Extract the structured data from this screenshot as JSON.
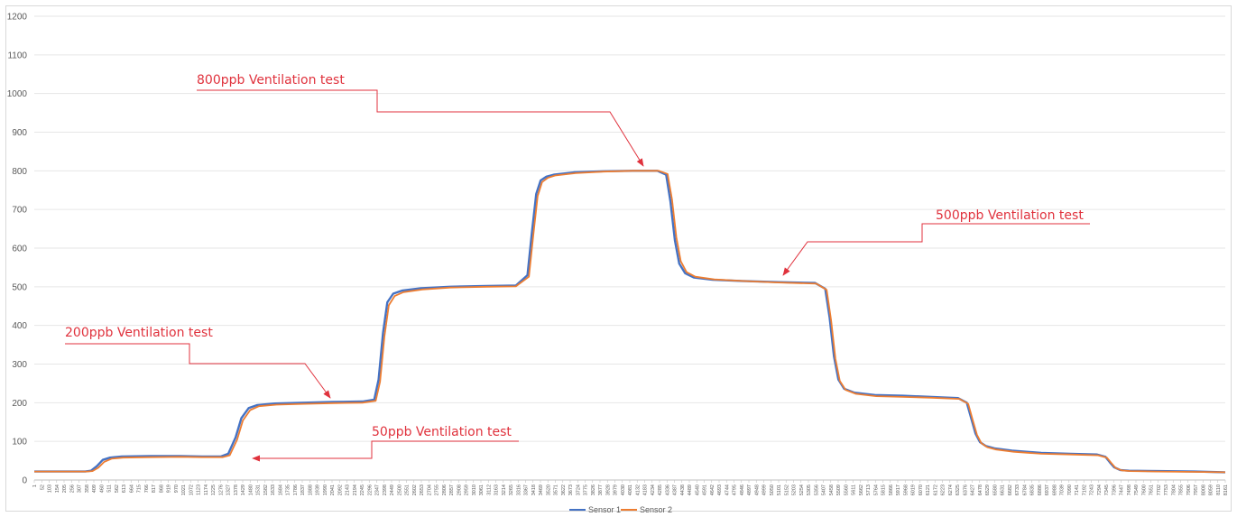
{
  "chart_data": {
    "type": "line",
    "title": "",
    "xlabel": "",
    "ylabel": "",
    "ylim": [
      0,
      1200
    ],
    "yticks": [
      0,
      100,
      200,
      300,
      400,
      500,
      600,
      700,
      800,
      900,
      1000,
      1100,
      1200
    ],
    "xlim": [
      1,
      8161
    ],
    "xticks": [
      1,
      52,
      103,
      154,
      205,
      256,
      307,
      358,
      409,
      460,
      511,
      562,
      613,
      664,
      715,
      766,
      817,
      868,
      919,
      970,
      1021,
      1072,
      1123,
      1174,
      1225,
      1276,
      1327,
      1378,
      1429,
      1480,
      1531,
      1582,
      1633,
      1684,
      1735,
      1786,
      1837,
      1888,
      1939,
      1990,
      2041,
      2092,
      2143,
      2194,
      2245,
      2296,
      2347,
      2398,
      2449,
      2500,
      2551,
      2602,
      2653,
      2704,
      2755,
      2806,
      2857,
      2908,
      2959,
      3010,
      3061,
      3112,
      3163,
      3214,
      3265,
      3316,
      3367,
      3418,
      3469,
      3520,
      3571,
      3622,
      3673,
      3724,
      3775,
      3826,
      3877,
      3928,
      3979,
      4030,
      4081,
      4132,
      4183,
      4234,
      4285,
      4336,
      4387,
      4438,
      4489,
      4540,
      4591,
      4642,
      4693,
      4744,
      4795,
      4846,
      4897,
      4948,
      4999,
      5050,
      5101,
      5152,
      5203,
      5254,
      5305,
      5356,
      5407,
      5458,
      5509,
      5560,
      5611,
      5662,
      5713,
      5764,
      5815,
      5866,
      5917,
      5968,
      6019,
      6070,
      6121,
      6172,
      6223,
      6274,
      6325,
      6376,
      6427,
      6478,
      6529,
      6580,
      6631,
      6682,
      6733,
      6784,
      6835,
      6886,
      6937,
      6988,
      7039,
      7090,
      7141,
      7192,
      7243,
      7294,
      7345,
      7396,
      7447,
      7498,
      7549,
      7600,
      7651,
      7702,
      7753,
      7804,
      7855,
      7906,
      7957,
      8008,
      8059,
      8110,
      8161
    ],
    "grid": true,
    "legend": "bottom",
    "series": [
      {
        "name": "Sensor 1",
        "color": "#4472c4",
        "x": [
          1,
          350,
          390,
          430,
          470,
          520,
          600,
          800,
          1000,
          1150,
          1280,
          1330,
          1380,
          1420,
          1470,
          1530,
          1650,
          1850,
          2050,
          2250,
          2330,
          2360,
          2390,
          2420,
          2460,
          2520,
          2650,
          2850,
          3100,
          3300,
          3380,
          3410,
          3440,
          3470,
          3510,
          3560,
          3700,
          3900,
          4100,
          4270,
          4330,
          4360,
          4390,
          4420,
          4460,
          4520,
          4650,
          4850,
          5100,
          5350,
          5420,
          5450,
          5480,
          5510,
          5550,
          5620,
          5760,
          5950,
          6150,
          6330,
          6390,
          6420,
          6450,
          6480,
          6520,
          6580,
          6700,
          6900,
          7100,
          7280,
          7340,
          7370,
          7400,
          7440,
          7500,
          7700,
          7950,
          8161
        ],
        "y": [
          22,
          22,
          24,
          36,
          52,
          58,
          61,
          62,
          62,
          61,
          61,
          68,
          110,
          160,
          186,
          194,
          198,
          200,
          202,
          203,
          208,
          260,
          380,
          460,
          482,
          490,
          496,
          500,
          502,
          503,
          530,
          640,
          740,
          775,
          785,
          790,
          796,
          799,
          800,
          800,
          790,
          720,
          620,
          560,
          535,
          524,
          518,
          515,
          512,
          510,
          495,
          420,
          320,
          260,
          236,
          226,
          220,
          218,
          215,
          212,
          200,
          160,
          120,
          98,
          88,
          82,
          76,
          70,
          68,
          66,
          60,
          46,
          33,
          26,
          24,
          23,
          22,
          20
        ]
      },
      {
        "name": "Sensor 2",
        "color": "#ed7d31",
        "x": [
          1,
          360,
          400,
          440,
          480,
          530,
          610,
          800,
          1000,
          1150,
          1290,
          1340,
          1390,
          1430,
          1480,
          1540,
          1660,
          1850,
          2050,
          2250,
          2340,
          2370,
          2400,
          2430,
          2470,
          2530,
          2660,
          2850,
          3100,
          3300,
          3390,
          3420,
          3450,
          3480,
          3520,
          3570,
          3710,
          3900,
          4100,
          4280,
          4340,
          4370,
          4400,
          4430,
          4470,
          4530,
          4660,
          4850,
          5100,
          5360,
          5430,
          5460,
          5490,
          5520,
          5560,
          5630,
          5770,
          5950,
          6150,
          6340,
          6400,
          6430,
          6460,
          6490,
          6530,
          6590,
          6710,
          6900,
          7100,
          7290,
          7350,
          7380,
          7410,
          7450,
          7510,
          7700,
          7950,
          8161
        ],
        "y": [
          22,
          22,
          23,
          32,
          47,
          55,
          58,
          59,
          60,
          59,
          59,
          64,
          104,
          154,
          181,
          191,
          195,
          197,
          199,
          200,
          205,
          254,
          372,
          452,
          476,
          486,
          493,
          498,
          500,
          501,
          526,
          634,
          735,
          771,
          782,
          788,
          794,
          798,
          800,
          800,
          792,
          726,
          628,
          566,
          538,
          526,
          519,
          515,
          511,
          508,
          492,
          414,
          314,
          256,
          233,
          223,
          217,
          215,
          213,
          210,
          197,
          156,
          117,
          95,
          85,
          79,
          73,
          68,
          66,
          64,
          58,
          44,
          31,
          25,
          23,
          22,
          21,
          20
        ]
      }
    ],
    "annotations": [
      {
        "text": "800ppb Ventilation test",
        "target": [
          4140,
          800
        ]
      },
      {
        "text": "500ppb Ventilation test",
        "target": [
          4990,
          507
        ]
      },
      {
        "text": "200ppb Ventilation test",
        "target": [
          2000,
          200
        ]
      },
      {
        "text": "50ppb Ventilation test",
        "target": [
          1420,
          55
        ]
      }
    ]
  }
}
